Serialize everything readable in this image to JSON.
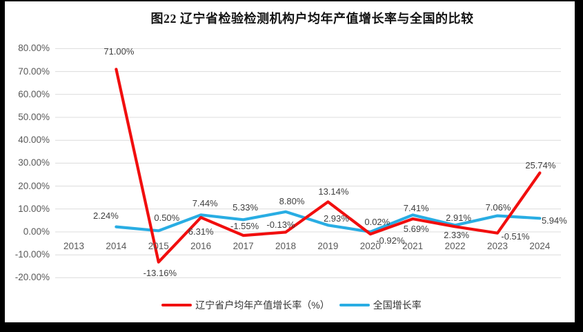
{
  "title": "图22 辽宁省检验检测机构户均年产值增长率与全国的比较",
  "chart_data": {
    "type": "line",
    "title": "图22 辽宁省检验检测机构户均年产值增长率与全国的比较",
    "categories": [
      "2013",
      "2014",
      "2015",
      "2016",
      "2017",
      "2018",
      "2019",
      "2020",
      "2021",
      "2022",
      "2023",
      "2024"
    ],
    "series": [
      {
        "name": "辽宁省户均年产值增长率（%）",
        "color": "#f10e0e",
        "values": [
          null,
          71.0,
          -13.16,
          6.31,
          -1.55,
          -0.13,
          13.14,
          -0.92,
          5.69,
          2.33,
          -0.51,
          25.74
        ],
        "labels": [
          null,
          "71.00%",
          "-13.16%",
          "6.31%",
          "-1.55%",
          "-0.13%",
          "13.14%",
          "-0.92%",
          "5.69%",
          "2.33%",
          "-0.51%",
          "25.74%"
        ]
      },
      {
        "name": "全国增长率",
        "color": "#29ade3",
        "values": [
          null,
          2.24,
          0.5,
          7.44,
          5.33,
          8.8,
          2.93,
          0.02,
          7.41,
          2.91,
          7.06,
          5.94
        ],
        "labels": [
          null,
          "2.24%",
          "0.50%",
          "7.44%",
          "5.33%",
          "8.80%",
          "2.93%",
          "0.02%",
          "7.41%",
          "2.91%",
          "7.06%",
          "5.94%"
        ]
      }
    ],
    "y_ticks": [
      "80.00%",
      "70.00%",
      "60.00%",
      "50.00%",
      "40.00%",
      "30.00%",
      "20.00%",
      "10.00%",
      "0.00%",
      "-10.00%",
      "-20.00%"
    ],
    "ylim": [
      -20,
      80
    ],
    "grid": true,
    "grid_color": "#dcdcdc",
    "legend_position": "bottom"
  }
}
